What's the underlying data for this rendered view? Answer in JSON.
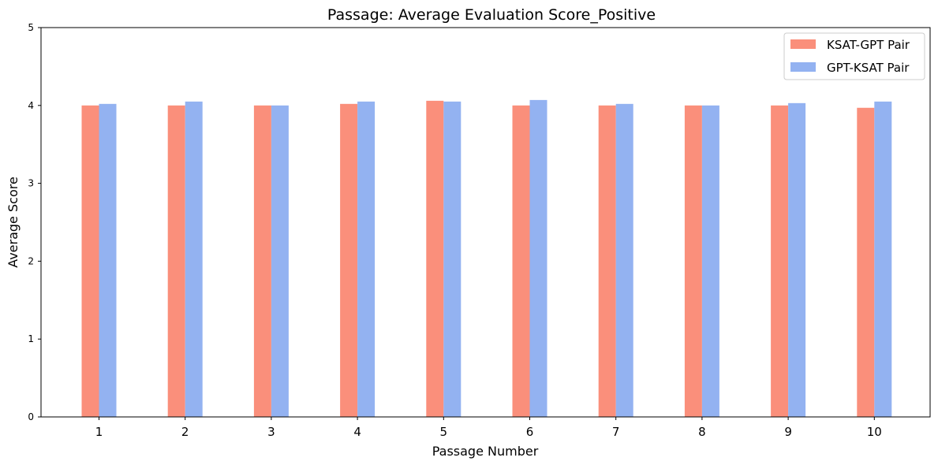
{
  "chart_data": {
    "type": "bar",
    "title": "Passage: Average Evaluation Score_Positive",
    "xlabel": "Passage Number",
    "ylabel": "Average Score",
    "categories": [
      "1",
      "2",
      "3",
      "4",
      "5",
      "6",
      "7",
      "8",
      "9",
      "10"
    ],
    "series": [
      {
        "name": "KSAT-GPT Pair",
        "color": "#fa8f7b",
        "values": [
          4.0,
          4.0,
          4.0,
          4.02,
          4.06,
          4.0,
          4.0,
          4.0,
          4.0,
          3.97
        ]
      },
      {
        "name": "GPT-KSAT Pair",
        "color": "#93b2f1",
        "values": [
          4.02,
          4.05,
          4.0,
          4.05,
          4.05,
          4.07,
          4.02,
          4.0,
          4.03,
          4.05
        ]
      }
    ],
    "ylim": [
      0,
      5
    ],
    "yticks": [
      "0",
      "1",
      "2",
      "3",
      "4",
      "5"
    ],
    "grid": false,
    "legend_position": "top-right"
  }
}
